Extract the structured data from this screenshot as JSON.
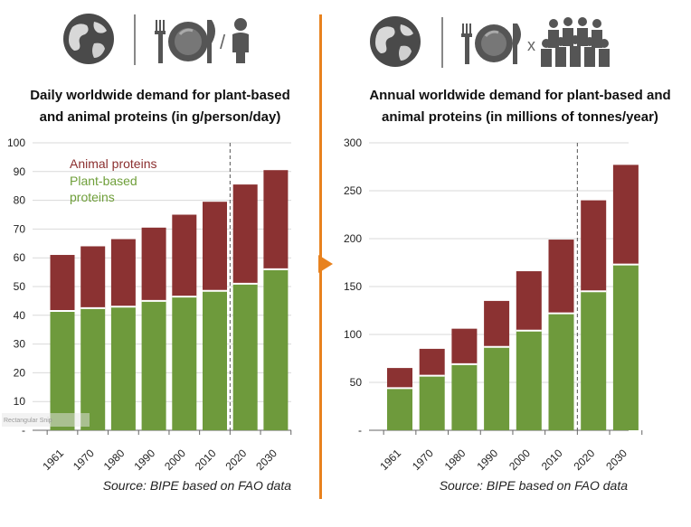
{
  "colors": {
    "animal": "#8b3232",
    "plant": "#6e9a3c",
    "divider": "#e8821e",
    "icon": "#555555",
    "grid": "#d9d9d9"
  },
  "icons": {
    "left": [
      "globe-icon",
      "plate-fork-knife-icon",
      "person-icon"
    ],
    "right": [
      "globe-icon",
      "plate-fork-knife-icon",
      "people-group-icon"
    ],
    "left_separator": "/",
    "right_separator": "x"
  },
  "divider_arrow": "play-arrow-icon",
  "overlay_text": "Rectangular Snip",
  "chart_data": [
    {
      "type": "bar",
      "stacked": true,
      "title_lines": [
        "Daily worldwide demand for plant-based",
        "and animal proteins (in g/person/day)"
      ],
      "categories": [
        "1961",
        "1970",
        "1980",
        "1990",
        "2000",
        "2010",
        "2020",
        "2030"
      ],
      "series": [
        {
          "name": "Plant-based proteins",
          "values": [
            41.5,
            42.5,
            43,
            45,
            46.5,
            48.5,
            51,
            56
          ]
        },
        {
          "name": "Animal proteins",
          "values": [
            19.5,
            21.5,
            23.5,
            25.5,
            28.5,
            31,
            34.5,
            34.5
          ]
        }
      ],
      "legend": {
        "animal": "Animal proteins",
        "plant_line1": "Plant-based",
        "plant_line2": "proteins"
      },
      "legend_position": "top-left",
      "ylim": [
        0,
        100
      ],
      "yticks": [
        0,
        10,
        20,
        30,
        40,
        50,
        60,
        70,
        80,
        90,
        100
      ],
      "ytick_labels": [
        "-",
        "10",
        "20",
        "30",
        "40",
        "50",
        "60",
        "70",
        "80",
        "90",
        "100"
      ],
      "projection_from": "2020",
      "source": "Source: BIPE based on FAO data"
    },
    {
      "type": "bar",
      "stacked": true,
      "title_lines": [
        "Annual worldwide demand for plant-based and",
        "animal proteins (in millions of tonnes/year)"
      ],
      "categories": [
        "1961",
        "1970",
        "1980",
        "1990",
        "2000",
        "2010",
        "2020",
        "2030"
      ],
      "series": [
        {
          "name": "Plant-based proteins",
          "values": [
            44,
            57,
            69,
            87,
            104,
            122,
            145,
            173
          ]
        },
        {
          "name": "Animal proteins",
          "values": [
            21,
            28,
            37,
            48,
            62,
            77,
            95,
            104
          ]
        }
      ],
      "ylim": [
        0,
        300
      ],
      "yticks": [
        0,
        50,
        100,
        150,
        200,
        250,
        300
      ],
      "ytick_labels": [
        "-",
        "50",
        "100",
        "150",
        "200",
        "250",
        "300"
      ],
      "projection_from": "2020",
      "source": "Source: BIPE based on FAO data"
    }
  ]
}
